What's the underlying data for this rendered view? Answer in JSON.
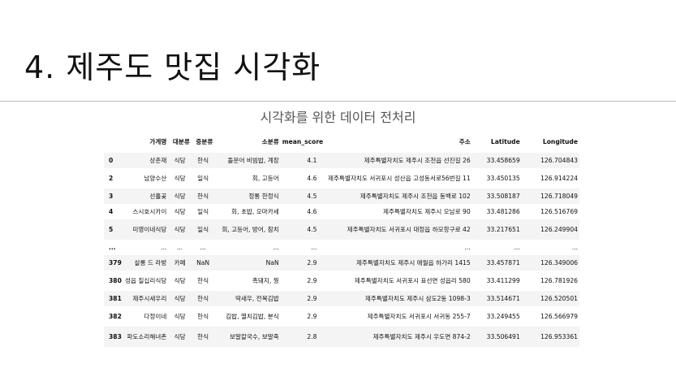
{
  "title": "4. 제주도 맛집 시각화",
  "subtitle": "시각화를 위한 데이터 전처리",
  "table": {
    "columns": [
      "",
      "가게명",
      "대분류",
      "중분류",
      "소분류",
      "mean_score",
      "주소",
      "Latitude",
      "Longitude"
    ],
    "rows": [
      [
        "0",
        "상춘재",
        "식당",
        "한식",
        "돌문어 비빔밥, 계장",
        "4.1",
        "제주특별자치도 제주시 조천읍 선진길 26",
        "33.458659",
        "126.704843"
      ],
      [
        "2",
        "남양수산",
        "식당",
        "일식",
        "회, 고등어",
        "4.6",
        "제주특별자치도 서귀포시 성산읍 고성동서로56번길 11",
        "33.450135",
        "126.914224"
      ],
      [
        "3",
        "선흘곶",
        "식당",
        "한식",
        "정통 한정식",
        "4.5",
        "제주특별자치도 제주시 조천읍 동백로 102",
        "33.508187",
        "126.718049"
      ],
      [
        "4",
        "스시호시카이",
        "식당",
        "일식",
        "회, 초밥, 오마카세",
        "4.6",
        "제주특별자치도 제주시 오남로 90",
        "33.481286",
        "126.516769"
      ],
      [
        "5",
        "미영이네식당",
        "식당",
        "일식",
        "회, 고등어, 방어, 참치",
        "4.5",
        "제주특별자치도 서귀포시 대정읍 하모항구로 42",
        "33.217651",
        "126.249904"
      ],
      [
        "...",
        "...",
        "...",
        "...",
        "...",
        "...",
        "...",
        "...",
        "..."
      ],
      [
        "379",
        "살롱 드 라방",
        "카페",
        "NaN",
        "NaN",
        "2.9",
        "제주특별자치도 제주시 애월읍 하가리 1415",
        "33.457871",
        "126.349006"
      ],
      [
        "380",
        "성읍 칠십리식당",
        "식당",
        "한식",
        "흑돼지, 꿩",
        "2.9",
        "제주특별자치도 서귀포시 표선면 성읍리 580",
        "33.411299",
        "126.781926"
      ],
      [
        "381",
        "제주시새우리",
        "식당",
        "한식",
        "딱새우, 전복김밥",
        "2.9",
        "제주특별자치도 제주시 삼도2동 1098-3",
        "33.514671",
        "126.520501"
      ],
      [
        "382",
        "다정이네",
        "식당",
        "한식",
        "김밥, 멸치김밥, 분식",
        "2.9",
        "제주특별자치도 서귀포시 서귀동 255-7",
        "33.249455",
        "126.566979"
      ],
      [
        "383",
        "파도소리해녀촌",
        "식당",
        "한식",
        "보말칼국수, 보말죽",
        "2.8",
        "제주특별자치도 제주시 우도면 874-2",
        "33.506491",
        "126.953361"
      ]
    ]
  }
}
